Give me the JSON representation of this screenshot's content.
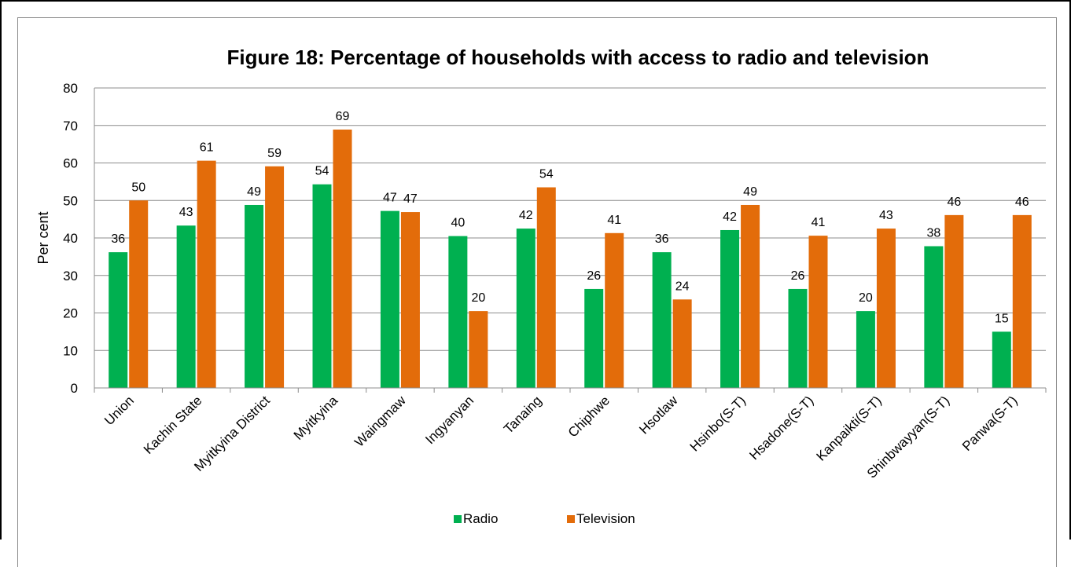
{
  "chart_data": {
    "type": "bar",
    "title": "Figure 18: Percentage of households with access to radio and television",
    "xlabel": "",
    "ylabel": "Per cent",
    "ylim": [
      0,
      80
    ],
    "yticks": [
      0,
      10,
      20,
      30,
      40,
      50,
      60,
      70,
      80
    ],
    "grid": true,
    "legend_position": "bottom",
    "categories": [
      "Union",
      "Kachin State",
      "Myitkyina District",
      "Myitkyina",
      "Waingmaw",
      "Ingyanyan",
      "Tanaing",
      "Chiphwe",
      "Hsotlaw",
      "Hsinbo(S-T)",
      "Hsadone(S-T)",
      "Kanpaikti(S-T)",
      "Shinbwayyan(S-T)",
      "Panwa(S-T)"
    ],
    "series": [
      {
        "name": "Radio",
        "color": "#00b050",
        "values": [
          36,
          43,
          49,
          54,
          47,
          40,
          42,
          26,
          36,
          42,
          26,
          20,
          38,
          15
        ],
        "bar_values": [
          36.2,
          43.3,
          48.8,
          54.3,
          47.2,
          40.5,
          42.5,
          26.4,
          36.2,
          42.1,
          26.4,
          20.5,
          37.8,
          15.0
        ]
      },
      {
        "name": "Television",
        "color": "#e36c0a",
        "values": [
          50,
          61,
          59,
          69,
          47,
          20,
          54,
          41,
          24,
          49,
          41,
          43,
          46,
          46
        ],
        "bar_values": [
          50.0,
          60.6,
          59.1,
          68.9,
          46.9,
          20.5,
          53.5,
          41.3,
          23.6,
          48.8,
          40.6,
          42.5,
          46.1,
          46.1
        ]
      }
    ]
  }
}
